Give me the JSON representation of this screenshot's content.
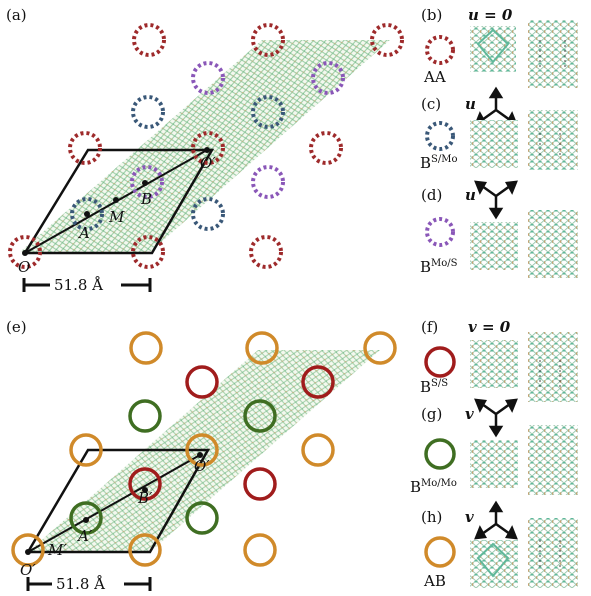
{
  "panels": {
    "a": "(a)",
    "b": "(b)",
    "c": "(c)",
    "d": "(d)",
    "e": "(e)",
    "f": "(f)",
    "g": "(g)",
    "h": "(h)"
  },
  "top": {
    "point_O": "O",
    "point_Oprime": "O′",
    "point_A": "A",
    "point_B": "B",
    "point_M": "M",
    "scale": "51.8 Å",
    "b_eq": "u = 0",
    "b_label": "AA",
    "c_sym": "u",
    "c_label_base": "B",
    "c_label_sup": "S/Mo",
    "d_sym": "u",
    "d_label_base": "B",
    "d_label_sup": "Mo/S"
  },
  "bottom": {
    "point_O": "O′",
    "point_Oprime": "O′",
    "point_A": "A′",
    "point_B": "B′",
    "point_M": "M′",
    "scale": "51.8 Å",
    "f_eq": "v = 0",
    "f_label_base": "B",
    "f_label_sup": "S/S",
    "g_sym": "v",
    "g_label_base": "B",
    "g_label_sup": "Mo/Mo",
    "h_sym": "v",
    "h_label": "AB"
  },
  "colors": {
    "aa_red": "#9e2a2b",
    "bsmo_blue": "#3a5878",
    "bmos_purple": "#8a57b8",
    "ab_orange": "#d08a2a",
    "bss_red": "#a01c1c",
    "bmomo_green": "#3f6e22",
    "lattice_green": "#8fc79a",
    "lattice_tan": "#c9a97a"
  }
}
